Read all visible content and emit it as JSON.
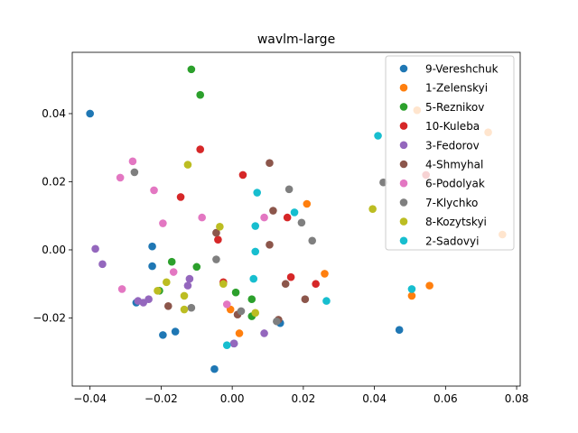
{
  "chart_data": {
    "type": "scatter",
    "title": "wavlm-large",
    "xlabel": "",
    "ylabel": "",
    "xlim": [
      -0.045,
      0.081
    ],
    "ylim": [
      -0.04,
      0.058
    ],
    "xticks": [
      -0.04,
      -0.02,
      0.0,
      0.02,
      0.04,
      0.06,
      0.08
    ],
    "xtick_labels": [
      "−0.04",
      "−0.02",
      "0.00",
      "0.02",
      "0.04",
      "0.06",
      "0.08"
    ],
    "yticks": [
      -0.02,
      0.0,
      0.02,
      0.04
    ],
    "ytick_labels": [
      "−0.02",
      "0.00",
      "0.02",
      "0.04"
    ],
    "grid": false,
    "legend_position": "top-right",
    "series": [
      {
        "name": "9-Vereshchuk",
        "color": "#1f77b4",
        "points": [
          [
            -0.04,
            0.04
          ],
          [
            -0.0225,
            0.001
          ],
          [
            -0.0225,
            -0.0048
          ],
          [
            -0.027,
            -0.0155
          ],
          [
            -0.016,
            -0.024
          ],
          [
            -0.0195,
            -0.025
          ],
          [
            -0.005,
            -0.035
          ],
          [
            0.0135,
            -0.0215
          ],
          [
            0.047,
            -0.0235
          ],
          [
            0.013,
            -0.021
          ],
          [
            0.0005,
            -0.0275
          ]
        ]
      },
      {
        "name": "1-Zelenskyi",
        "color": "#ff7f0e",
        "points": [
          [
            0.052,
            0.041
          ],
          [
            0.072,
            0.0345
          ],
          [
            0.076,
            0.0045
          ],
          [
            0.0555,
            -0.0105
          ],
          [
            0.0505,
            -0.0135
          ],
          [
            0.026,
            -0.007
          ],
          [
            0.021,
            0.0135
          ],
          [
            0.002,
            -0.0245
          ],
          [
            -0.0005,
            -0.0175
          ]
        ]
      },
      {
        "name": "5-Reznikov",
        "color": "#2ca02c",
        "points": [
          [
            -0.0115,
            0.053
          ],
          [
            -0.009,
            0.0455
          ],
          [
            -0.017,
            -0.0035
          ],
          [
            -0.01,
            -0.005
          ],
          [
            0.001,
            -0.0125
          ],
          [
            0.0055,
            -0.0145
          ],
          [
            0.0055,
            -0.0195
          ],
          [
            -0.0205,
            -0.012
          ]
        ]
      },
      {
        "name": "10-Kuleba",
        "color": "#d62728",
        "points": [
          [
            -0.009,
            0.0295
          ],
          [
            0.003,
            0.022
          ],
          [
            -0.0145,
            0.0155
          ],
          [
            -0.004,
            0.003
          ],
          [
            0.0155,
            0.0095
          ],
          [
            0.0545,
            0.022
          ],
          [
            0.0165,
            -0.008
          ],
          [
            0.0235,
            -0.01
          ],
          [
            -0.0025,
            -0.0095
          ]
        ]
      },
      {
        "name": "3-Fedorov",
        "color": "#9467bd",
        "points": [
          [
            -0.0385,
            0.0003
          ],
          [
            -0.0365,
            -0.0042
          ],
          [
            -0.012,
            -0.0085
          ],
          [
            -0.0125,
            -0.0105
          ],
          [
            -0.0235,
            -0.0145
          ],
          [
            -0.0265,
            -0.015
          ],
          [
            -0.025,
            -0.0155
          ],
          [
            0.009,
            -0.0245
          ],
          [
            0.0005,
            -0.0275
          ]
        ]
      },
      {
        "name": "4-Shmyhal",
        "color": "#8c564b",
        "points": [
          [
            0.0105,
            0.0255
          ],
          [
            0.0115,
            0.0115
          ],
          [
            -0.0045,
            0.005
          ],
          [
            0.0105,
            0.0015
          ],
          [
            0.015,
            -0.01
          ],
          [
            0.0205,
            -0.0145
          ],
          [
            -0.018,
            -0.0165
          ],
          [
            0.0015,
            -0.019
          ],
          [
            0.013,
            -0.0205
          ]
        ]
      },
      {
        "name": "6-Podolyak",
        "color": "#e377c2",
        "points": [
          [
            -0.028,
            0.026
          ],
          [
            -0.0315,
            0.0212
          ],
          [
            -0.022,
            0.0175
          ],
          [
            -0.0195,
            0.0078
          ],
          [
            -0.0085,
            0.0095
          ],
          [
            0.009,
            0.0095
          ],
          [
            -0.0165,
            -0.0065
          ],
          [
            -0.031,
            -0.0115
          ],
          [
            -0.0015,
            -0.016
          ]
        ]
      },
      {
        "name": "7-Klychko",
        "color": "#7f7f7f",
        "points": [
          [
            -0.0275,
            0.0228
          ],
          [
            0.016,
            0.0178
          ],
          [
            0.0195,
            0.008
          ],
          [
            0.0225,
            0.0027
          ],
          [
            0.0425,
            0.0198
          ],
          [
            -0.0045,
            -0.0028
          ],
          [
            -0.0115,
            -0.017
          ],
          [
            0.0025,
            -0.018
          ],
          [
            0.0125,
            -0.021
          ]
        ]
      },
      {
        "name": "8-Kozytskyi",
        "color": "#bcbd22",
        "points": [
          [
            -0.0125,
            0.025
          ],
          [
            -0.0035,
            0.0068
          ],
          [
            0.0395,
            0.012
          ],
          [
            -0.0185,
            -0.0095
          ],
          [
            -0.021,
            -0.012
          ],
          [
            -0.0135,
            -0.0135
          ],
          [
            -0.0025,
            -0.01
          ],
          [
            -0.0135,
            -0.0175
          ],
          [
            0.0065,
            -0.0185
          ]
        ]
      },
      {
        "name": "2-Sadovyi",
        "color": "#17becf",
        "points": [
          [
            0.041,
            0.0335
          ],
          [
            0.007,
            0.0168
          ],
          [
            0.0065,
            0.007
          ],
          [
            0.0175,
            0.011
          ],
          [
            0.0065,
            -0.0005
          ],
          [
            0.006,
            -0.0085
          ],
          [
            0.0265,
            -0.015
          ],
          [
            0.0505,
            -0.0115
          ],
          [
            -0.0015,
            -0.028
          ]
        ]
      }
    ]
  }
}
